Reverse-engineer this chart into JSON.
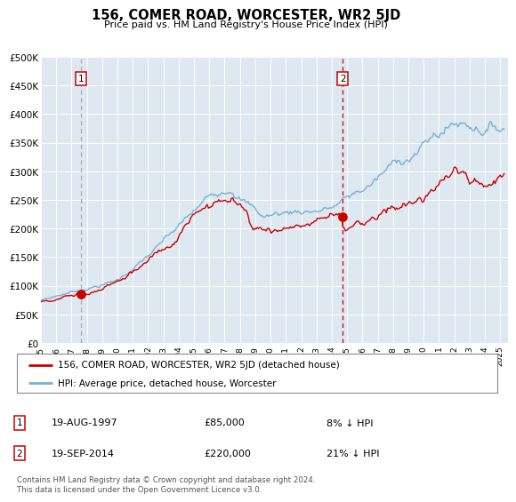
{
  "title": "156, COMER ROAD, WORCESTER, WR2 5JD",
  "subtitle": "Price paid vs. HM Land Registry's House Price Index (HPI)",
  "ylim": [
    0,
    500000
  ],
  "yticks": [
    0,
    50000,
    100000,
    150000,
    200000,
    250000,
    300000,
    350000,
    400000,
    450000,
    500000
  ],
  "ytick_labels": [
    "£0",
    "£50K",
    "£100K",
    "£150K",
    "£200K",
    "£250K",
    "£300K",
    "£350K",
    "£400K",
    "£450K",
    "£500K"
  ],
  "xlim_start": 1995.0,
  "xlim_end": 2025.5,
  "sale1_date": 1997.63,
  "sale1_price": 85000,
  "sale2_date": 2014.72,
  "sale2_price": 220000,
  "hpi_color": "#7ab0d4",
  "price_color": "#cc0000",
  "sale1_vline_color": "#aaaaaa",
  "sale2_vline_color": "#cc0000",
  "bg_color": "#dde8f0",
  "legend_label_red": "156, COMER ROAD, WORCESTER, WR2 5JD (detached house)",
  "legend_label_blue": "HPI: Average price, detached house, Worcester",
  "note1_date": "19-AUG-1997",
  "note1_price": "£85,000",
  "note1_hpi": "8% ↓ HPI",
  "note2_date": "19-SEP-2014",
  "note2_price": "£220,000",
  "note2_hpi": "21% ↓ HPI",
  "footer": "Contains HM Land Registry data © Crown copyright and database right 2024.\nThis data is licensed under the Open Government Licence v3.0."
}
